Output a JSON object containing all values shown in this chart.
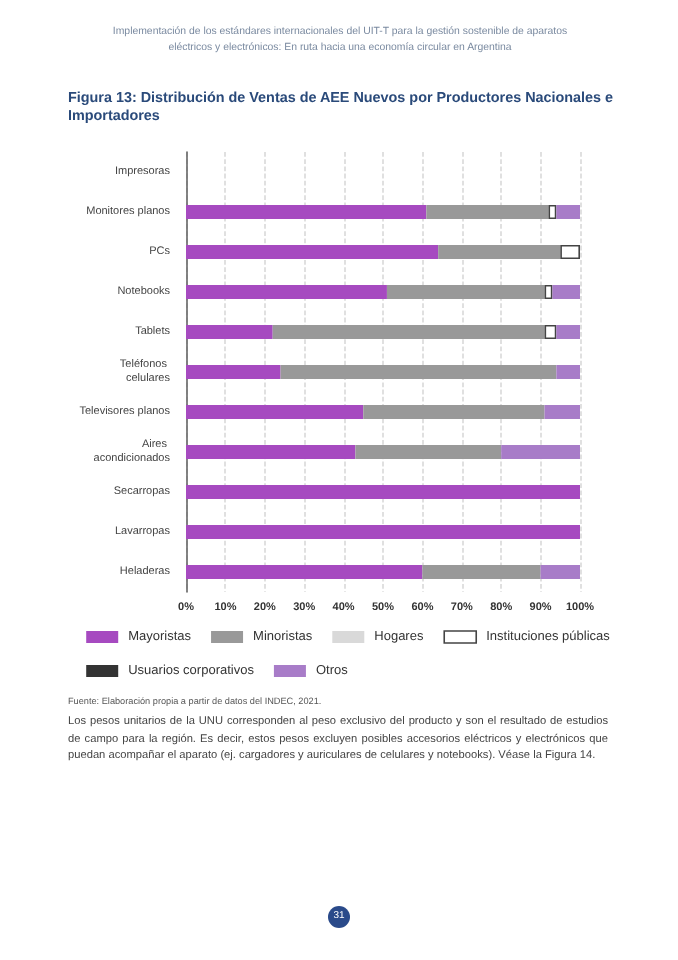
{
  "chart_data": {
    "type": "bar",
    "orientation": "horizontal",
    "stacked": true,
    "title": "Figura 13: Distribución de Ventas de AEE Nuevos por Productores Nacionales e Importadores",
    "categories": [
      "Impresoras",
      "Monitores planos",
      "PCs",
      "Notebooks",
      "Tablets",
      "Teléfonos celulares",
      "Televisores planos",
      "Aires acondicionados",
      "Secarropas",
      "Lavarropas",
      "Heladeras"
    ],
    "series": [
      {
        "name": "Mayoristas",
        "color": "#a64ac0",
        "values": [
          null,
          61,
          64,
          51,
          22,
          24,
          45,
          43,
          100,
          100,
          60
        ]
      },
      {
        "name": "Minoristas",
        "color": "#999999",
        "values": [
          null,
          31,
          31,
          40,
          69,
          70,
          46,
          37,
          null,
          null,
          30
        ]
      },
      {
        "name": "Hogares",
        "color": "#d9d9d9",
        "values": [
          null,
          null,
          null,
          null,
          null,
          null,
          null,
          null,
          null,
          null,
          null
        ]
      },
      {
        "name": "Instituciones públicas",
        "color": "#ffffff",
        "values": [
          null,
          2,
          5,
          2,
          3,
          null,
          null,
          null,
          null,
          null,
          null
        ]
      },
      {
        "name": "Usuarios corporativos",
        "color": "#333333",
        "values": [
          null,
          null,
          null,
          null,
          null,
          null,
          null,
          null,
          null,
          null,
          null
        ]
      },
      {
        "name": "Otros",
        "color": "#a87cc8",
        "values": [
          null,
          6,
          null,
          7,
          6,
          6,
          9,
          20,
          null,
          null,
          10
        ]
      }
    ],
    "xlim": [
      0,
      100
    ],
    "xticks": [
      {
        "value": 0,
        "label": "0%"
      },
      {
        "value": 10,
        "label": "10%"
      },
      {
        "value": 20,
        "label": "20%"
      },
      {
        "value": 30,
        "label": "30%"
      },
      {
        "value": 40,
        "label": "40%"
      },
      {
        "value": 50,
        "label": "50%"
      },
      {
        "value": 60,
        "label": "60%"
      },
      {
        "value": 70,
        "label": "70%"
      },
      {
        "value": 80,
        "label": "80%"
      },
      {
        "value": 90,
        "label": "90%"
      },
      {
        "value": 100,
        "label": "100%"
      }
    ],
    "grid": "x",
    "legend": "bottom",
    "annotations": [
      "Implementación de los estándares internacionales del UIT-T para la gestión sostenible de aparatos eléctricos y electrónicos: En ruta hacia una economía circular en Argentina",
      "Fuente: Elaboración propia a partir de datos del INDEC, 2021.",
      "Los pesos unitarios de la UNU corresponden al peso exclusivo del producto y son el resultado de estudios de campo para la región. Es decir, estos pesos excluyen posibles accesorios eléctricos y electrónicos que puedan acompañar el aparato (ej. cargadores y auriculares de celulares y notebooks). Véase la Figura 14.",
      "31"
    ]
  }
}
